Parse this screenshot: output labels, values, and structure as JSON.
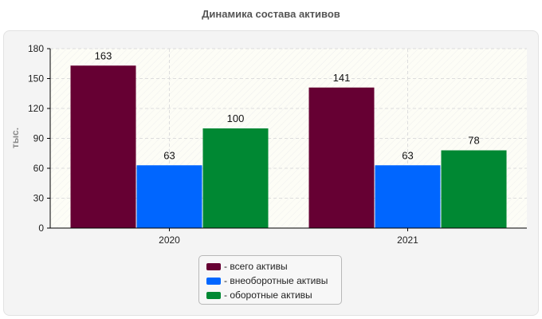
{
  "chart_data": {
    "type": "bar",
    "title": "Динамика состава активов",
    "xlabel": "",
    "ylabel": "тыс.",
    "categories": [
      "2020",
      "2021"
    ],
    "ylim": [
      0,
      180
    ],
    "yticks": [
      "0",
      "30",
      "60",
      "90",
      "120",
      "150",
      "180"
    ],
    "grid": true,
    "legend_position": "bottom",
    "series": [
      {
        "name": "всего активы",
        "legend_label": "- всего активы",
        "color": "#660033",
        "values": [
          163,
          141
        ],
        "labels": [
          "163",
          "141"
        ]
      },
      {
        "name": "внеоборотные активы",
        "legend_label": "- внеоборотные активы",
        "color": "#0066ff",
        "values": [
          63,
          63
        ],
        "labels": [
          "63",
          "63"
        ]
      },
      {
        "name": "оборотные активы",
        "legend_label": "- оборотные активы",
        "color": "#008833",
        "values": [
          100,
          78
        ],
        "labels": [
          "100",
          "78"
        ]
      }
    ]
  }
}
